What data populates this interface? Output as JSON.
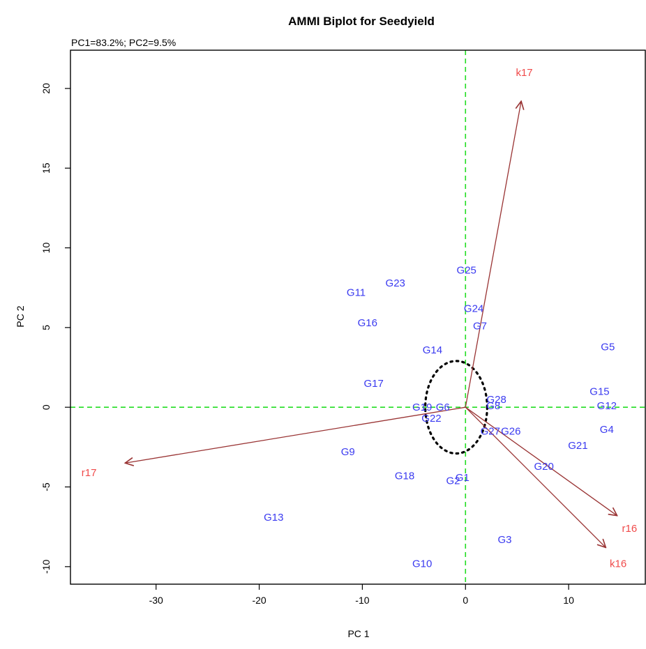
{
  "chart_data": {
    "type": "scatter",
    "title": "AMMI Biplot for Seedyield",
    "subtitle": "PC1=83.2%; PC2=9.5%",
    "xlabel": "PC 1",
    "ylabel": "PC 2",
    "xlim": [
      -38.3,
      17.5
    ],
    "ylim": [
      -11.1,
      22.4
    ],
    "xticks": [
      -30,
      -20,
      -10,
      0,
      10
    ],
    "yticks": [
      -10,
      -5,
      0,
      5,
      10,
      15,
      20
    ],
    "reference_lines": {
      "x": 0,
      "y": 0,
      "style": "dashed",
      "color": "#22dd22"
    },
    "colors": {
      "genotypes": "#3a3af0",
      "environments": "#f04a4a",
      "vectors": "#993333"
    },
    "genotypes": [
      {
        "label": "G1",
        "x": -0.3,
        "y": -4.4
      },
      {
        "label": "G2",
        "x": -1.2,
        "y": -4.6
      },
      {
        "label": "G3",
        "x": 3.8,
        "y": -8.3
      },
      {
        "label": "G4",
        "x": 13.7,
        "y": -1.4
      },
      {
        "label": "G5",
        "x": 13.8,
        "y": 3.8
      },
      {
        "label": "G7",
        "x": 1.4,
        "y": 5.1
      },
      {
        "label": "G8",
        "x": 2.7,
        "y": 0.1
      },
      {
        "label": "G9",
        "x": -11.4,
        "y": -2.8
      },
      {
        "label": "G10",
        "x": -4.2,
        "y": -9.8
      },
      {
        "label": "G11",
        "x": -10.6,
        "y": 7.2
      },
      {
        "label": "G12",
        "x": 13.7,
        "y": 0.1
      },
      {
        "label": "G13",
        "x": -18.6,
        "y": -6.9
      },
      {
        "label": "G14",
        "x": -3.2,
        "y": 3.6
      },
      {
        "label": "G15",
        "x": 13.0,
        "y": 1.0
      },
      {
        "label": "G16",
        "x": -9.5,
        "y": 5.3
      },
      {
        "label": "G17",
        "x": -8.9,
        "y": 1.5
      },
      {
        "label": "G18",
        "x": -5.9,
        "y": -4.3
      },
      {
        "label": "G19",
        "x": -4.2,
        "y": 0.0
      },
      {
        "label": "G20",
        "x": 7.6,
        "y": -3.7
      },
      {
        "label": "G21",
        "x": 10.9,
        "y": -2.4
      },
      {
        "label": "G22",
        "x": -3.3,
        "y": -0.7
      },
      {
        "label": "G23",
        "x": -6.8,
        "y": 7.8
      },
      {
        "label": "G24",
        "x": 0.8,
        "y": 6.2
      },
      {
        "label": "G25",
        "x": 0.1,
        "y": 8.6
      },
      {
        "label": "G26",
        "x": 4.4,
        "y": -1.5
      },
      {
        "label": "G27",
        "x": 2.4,
        "y": -1.5
      },
      {
        "label": "G28",
        "x": 3.0,
        "y": 0.5
      },
      {
        "label": "G6",
        "x": -2.2,
        "y": 0.0
      }
    ],
    "environments": [
      {
        "label": "k17",
        "x": 5.4,
        "y": 19.2,
        "label_x": 5.7,
        "label_y": 21.0
      },
      {
        "label": "r17",
        "x": -33.0,
        "y": -3.5,
        "label_x": -36.5,
        "label_y": -4.1
      },
      {
        "label": "r16",
        "x": 14.7,
        "y": -6.8,
        "label_x": 15.9,
        "label_y": -7.6
      },
      {
        "label": "k16",
        "x": 13.6,
        "y": -8.8,
        "label_x": 14.8,
        "label_y": -9.8
      }
    ],
    "ellipse": {
      "cx": -0.9,
      "cy": 0.0,
      "rx": 3.0,
      "ry": 2.9
    }
  }
}
